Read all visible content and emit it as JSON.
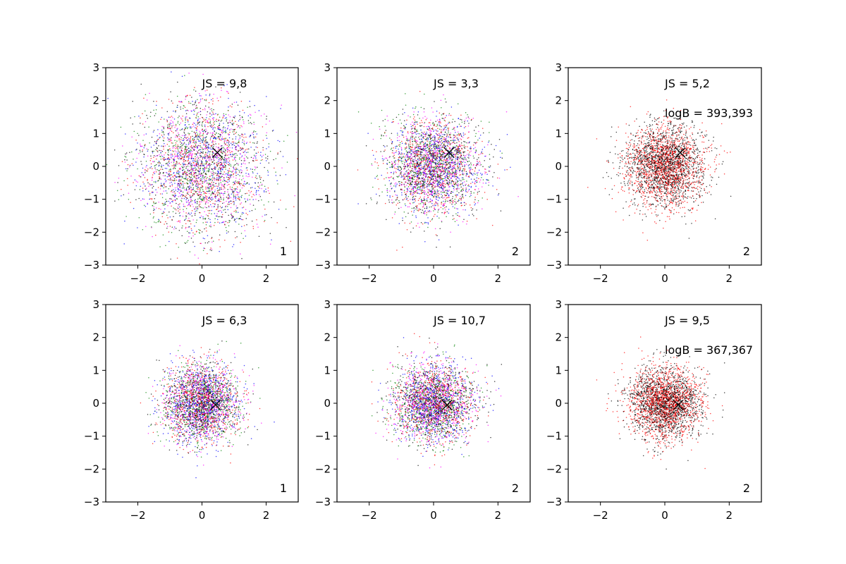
{
  "chart_data": [
    {
      "type": "scatter",
      "xlim": [
        -3,
        3
      ],
      "ylim": [
        -3,
        3
      ],
      "xticks": [
        -2,
        0,
        2
      ],
      "yticks": [
        -3,
        -2,
        -1,
        0,
        1,
        2,
        3
      ],
      "xtick_labels": [
        "−2",
        "0",
        "2"
      ],
      "ytick_labels": [
        "−3",
        "−2",
        "−1",
        "0",
        "1",
        "2",
        "3"
      ],
      "grid": false,
      "annotations": [
        "JS = 9,8"
      ],
      "panel_label": "1",
      "marker": {
        "symbol": "x",
        "x": 0.48,
        "y": 0.42,
        "color": "#000000"
      },
      "cloud": {
        "center": [
          0,
          0
        ],
        "spread": 1.0,
        "count": 3200,
        "colors": [
          "#0000ff",
          "#008000",
          "#ff0000",
          "#000000",
          "#ff00ff"
        ]
      }
    },
    {
      "type": "scatter",
      "xlim": [
        -3,
        3
      ],
      "ylim": [
        -3,
        3
      ],
      "xticks": [
        -2,
        0,
        2
      ],
      "yticks": [
        -3,
        -2,
        -1,
        0,
        1,
        2,
        3
      ],
      "xtick_labels": [
        "−2",
        "0",
        "2"
      ],
      "ytick_labels": [
        "−3",
        "−2",
        "−1",
        "0",
        "1",
        "2",
        "3"
      ],
      "grid": false,
      "annotations": [
        "JS = 3,3"
      ],
      "panel_label": "2",
      "marker": {
        "symbol": "x",
        "x": 0.48,
        "y": 0.42,
        "color": "#000000"
      },
      "cloud": {
        "center": [
          0,
          0
        ],
        "spread": 0.72,
        "count": 3200,
        "colors": [
          "#ff0000",
          "#0000ff",
          "#008000",
          "#000000",
          "#ff00ff"
        ]
      }
    },
    {
      "type": "scatter",
      "xlim": [
        -3,
        3
      ],
      "ylim": [
        -3,
        3
      ],
      "xticks": [
        -2,
        0,
        2
      ],
      "yticks": [
        -3,
        -2,
        -1,
        0,
        1,
        2,
        3
      ],
      "xtick_labels": [
        "−2",
        "0",
        "2"
      ],
      "ytick_labels": [
        "−3",
        "−2",
        "−1",
        "0",
        "1",
        "2",
        "3"
      ],
      "grid": false,
      "annotations": [
        "JS = 5,2",
        "logB = 393,393"
      ],
      "panel_label": "2",
      "marker": {
        "symbol": "x",
        "x": 0.48,
        "y": 0.42,
        "color": "#000000"
      },
      "cloud": {
        "center": [
          0,
          0
        ],
        "spread": 0.62,
        "count": 3000,
        "colors": [
          "#ff0000",
          "#000000"
        ]
      }
    },
    {
      "type": "scatter",
      "xlim": [
        -3,
        3
      ],
      "ylim": [
        -3,
        3
      ],
      "xticks": [
        -2,
        0,
        2
      ],
      "yticks": [
        -3,
        -2,
        -1,
        0,
        1,
        2,
        3
      ],
      "xtick_labels": [
        "−2",
        "0",
        "2"
      ],
      "ytick_labels": [
        "−3",
        "−2",
        "−1",
        "0",
        "1",
        "2",
        "3"
      ],
      "grid": false,
      "annotations": [
        "JS = 6,3"
      ],
      "panel_label": "1",
      "marker": {
        "symbol": "x",
        "x": 0.42,
        "y": -0.05,
        "color": "#000000"
      },
      "cloud": {
        "center": [
          0,
          0
        ],
        "spread": 0.58,
        "count": 3200,
        "colors": [
          "#0000ff",
          "#008000",
          "#ff0000",
          "#000000",
          "#ff00ff"
        ]
      }
    },
    {
      "type": "scatter",
      "xlim": [
        -3,
        3
      ],
      "ylim": [
        -3,
        3
      ],
      "xticks": [
        -2,
        0,
        2
      ],
      "yticks": [
        -3,
        -2,
        -1,
        0,
        1,
        2,
        3
      ],
      "xtick_labels": [
        "−2",
        "0",
        "2"
      ],
      "ytick_labels": [
        "−3",
        "−2",
        "−1",
        "0",
        "1",
        "2",
        "3"
      ],
      "grid": false,
      "annotations": [
        "JS = 10,7"
      ],
      "panel_label": "2",
      "marker": {
        "symbol": "x",
        "x": 0.42,
        "y": -0.05,
        "color": "#000000"
      },
      "cloud": {
        "center": [
          0,
          0
        ],
        "spread": 0.6,
        "count": 3200,
        "colors": [
          "#ff0000",
          "#008000",
          "#0000ff",
          "#000000",
          "#ff00ff"
        ]
      }
    },
    {
      "type": "scatter",
      "xlim": [
        -3,
        3
      ],
      "ylim": [
        -3,
        3
      ],
      "xticks": [
        -2,
        0,
        2
      ],
      "yticks": [
        -3,
        -2,
        -1,
        0,
        1,
        2,
        3
      ],
      "xtick_labels": [
        "−2",
        "0",
        "2"
      ],
      "ytick_labels": [
        "−3",
        "−2",
        "−1",
        "0",
        "1",
        "2",
        "3"
      ],
      "grid": false,
      "annotations": [
        "JS = 9,5",
        "logB = 367,367"
      ],
      "panel_label": "2",
      "marker": {
        "symbol": "x",
        "x": 0.42,
        "y": -0.05,
        "color": "#000000"
      },
      "cloud": {
        "center": [
          0,
          0
        ],
        "spread": 0.55,
        "count": 3000,
        "colors": [
          "#ff0000",
          "#000000"
        ]
      }
    }
  ]
}
